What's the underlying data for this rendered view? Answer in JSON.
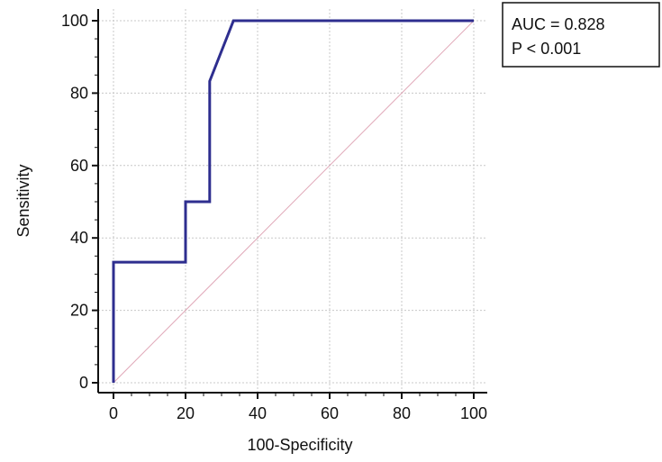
{
  "chart_data": {
    "type": "line",
    "title": "",
    "xlabel": "100-Specificity",
    "ylabel": "Sensitivity",
    "xlim": [
      0,
      100
    ],
    "ylim": [
      0,
      100
    ],
    "xticks": [
      0,
      20,
      40,
      60,
      80,
      100
    ],
    "yticks": [
      0,
      20,
      40,
      60,
      80,
      100
    ],
    "grid": true,
    "series": [
      {
        "name": "",
        "color": "#2e2e8f",
        "x": [
          0,
          0,
          20,
          20,
          26.7,
          26.7,
          33.3,
          100
        ],
        "y": [
          0,
          33.3,
          33.3,
          50,
          50,
          83.3,
          100,
          100
        ]
      },
      {
        "name": "",
        "color": "#e0a8b8",
        "x": [
          0,
          100
        ],
        "y": [
          0,
          100
        ]
      }
    ],
    "legend": {
      "placement": "top-right",
      "lines": [
        "AUC = 0.828",
        "P < 0.001"
      ]
    }
  }
}
